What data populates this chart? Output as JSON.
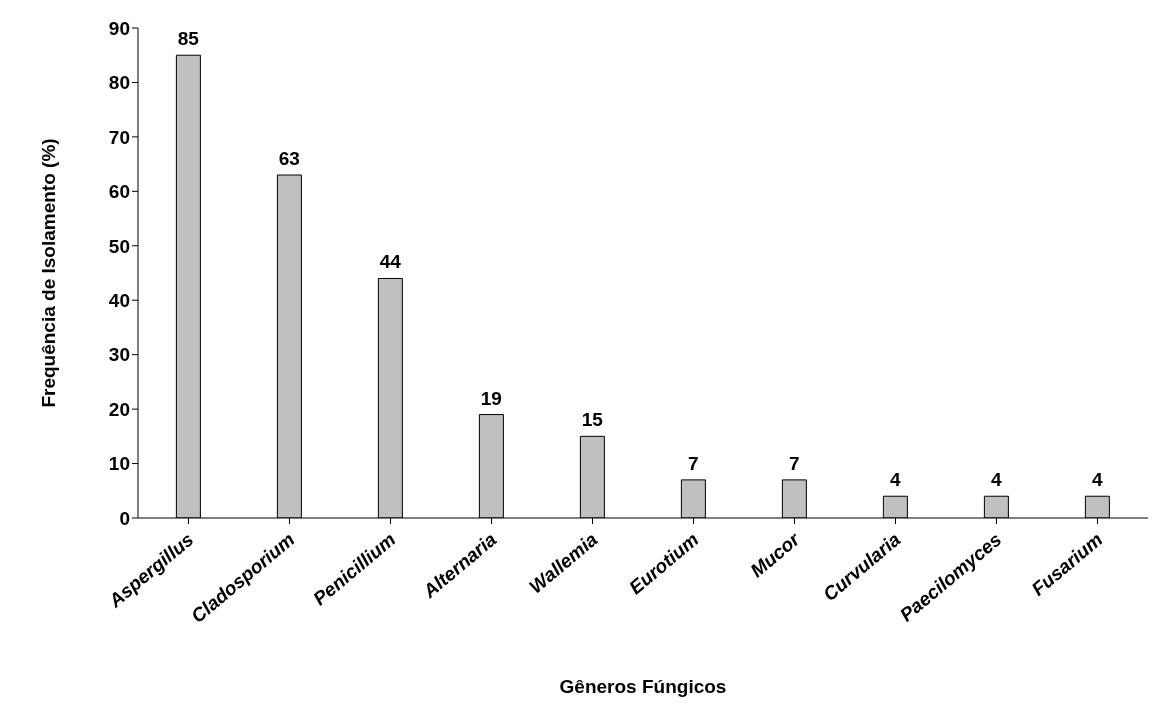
{
  "chart_data": {
    "type": "bar",
    "categories": [
      "Aspergillus",
      "Cladosporium",
      "Penicillium",
      "Alternaria",
      "Wallemia",
      "Eurotium",
      "Mucor",
      "Curvularia",
      "Paecilomyces",
      "Fusarium"
    ],
    "values": [
      85,
      63,
      44,
      19,
      15,
      7,
      7,
      4,
      4,
      4
    ],
    "color": "#c0c0c0",
    "xlabel": "Gêneros Fúngicos",
    "ylabel": "Frequência de Isolamento (%)",
    "ylim": [
      0,
      90
    ],
    "yticks": [
      0,
      10,
      20,
      30,
      40,
      50,
      60,
      70,
      80,
      90
    ],
    "data_labels": true,
    "grid": false,
    "legend": false
  }
}
